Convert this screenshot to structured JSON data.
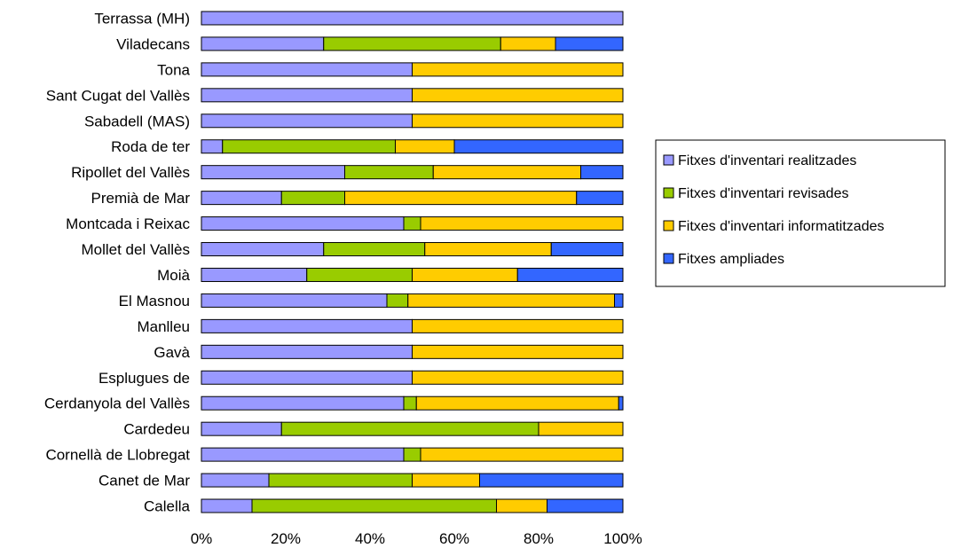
{
  "chart_data": {
    "type": "bar",
    "orientation": "horizontal",
    "stacked": "percent",
    "categories": [
      "Terrassa (MH)",
      "Viladecans",
      "Tona",
      "Sant Cugat del Vallès",
      "Sabadell (MAS)",
      "Roda de ter",
      "Ripollet del Vallès",
      "Premià de Mar",
      "Montcada i Reixac",
      "Mollet del Vallès",
      "Moià",
      "El Masnou",
      "Manlleu",
      "Gavà",
      "Esplugues de",
      "Cerdanyola del Vallès",
      "Cardedeu",
      "Cornellà de Llobregat",
      "Canet de Mar",
      "Calella"
    ],
    "series": [
      {
        "name": "Fitxes d'inventari  realitzades",
        "color": "#9999ff",
        "values": [
          100,
          29,
          50,
          50,
          50,
          5,
          34,
          19,
          48,
          29,
          25,
          44,
          50,
          50,
          50,
          48,
          19,
          48,
          16,
          12
        ]
      },
      {
        "name": "Fitxes d'inventari revisades",
        "color": "#99cc00",
        "values": [
          0,
          42,
          0,
          0,
          0,
          41,
          21,
          15,
          4,
          24,
          25,
          5,
          0,
          0,
          0,
          3,
          61,
          4,
          34,
          58
        ]
      },
      {
        "name": "Fitxes d'inventari informatitzades",
        "color": "#ffcc00",
        "values": [
          0,
          13,
          50,
          50,
          50,
          14,
          35,
          55,
          48,
          30,
          25,
          49,
          50,
          50,
          50,
          48,
          20,
          48,
          16,
          12
        ]
      },
      {
        "name": "Fitxes ampliades",
        "color": "#3366ff",
        "values": [
          0,
          16,
          0,
          0,
          0,
          40,
          10,
          11,
          0,
          17,
          25,
          2,
          0,
          0,
          0,
          1,
          0,
          0,
          34,
          18
        ]
      }
    ],
    "x_ticks": [
      "0%",
      "20%",
      "40%",
      "60%",
      "80%",
      "100%"
    ],
    "xlim": [
      0,
      100
    ],
    "grid": false,
    "legend_position": "right"
  }
}
